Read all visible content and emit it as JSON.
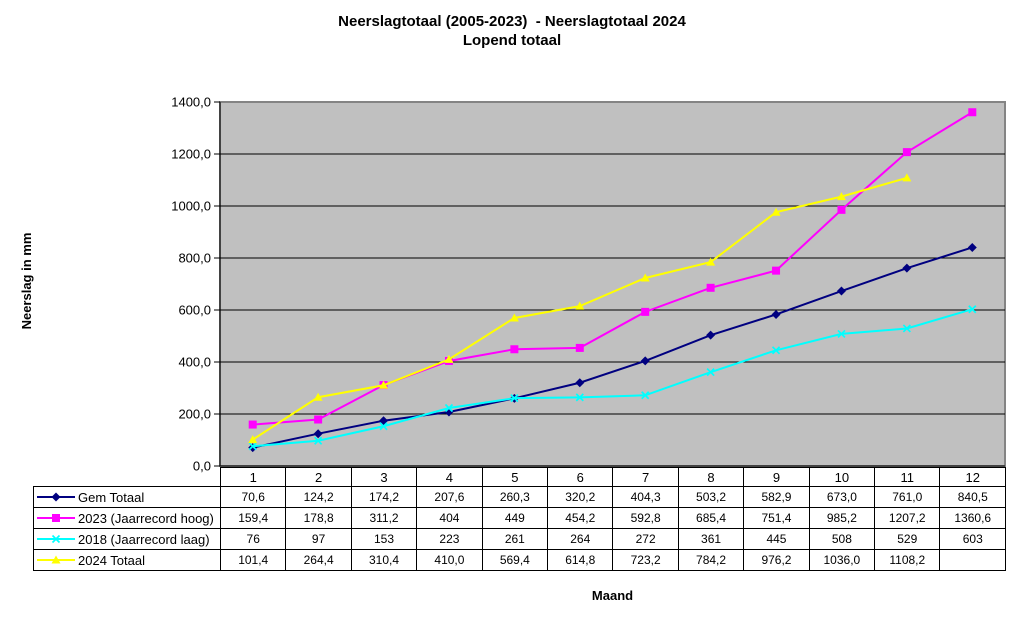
{
  "chart_data": {
    "type": "line",
    "title": "Neerslagtotaal (2005-2023)  - Neerslagtotaal 2024",
    "subtitle": "Lopend totaal",
    "xlabel": "Maand",
    "ylabel": "Neerslag in mm",
    "ylim": [
      0,
      1400
    ],
    "ytick_step": 200,
    "ytick_labels": [
      "0,0",
      "200,0",
      "400,0",
      "600,0",
      "800,0",
      "1000,0",
      "1200,0",
      "1400,0"
    ],
    "categories": [
      "1",
      "2",
      "3",
      "4",
      "5",
      "6",
      "7",
      "8",
      "9",
      "10",
      "11",
      "12"
    ],
    "grid_on": true,
    "legend_position": "table-left",
    "colors": {
      "plot_background": "#c0c0c0",
      "plot_border": "#848484",
      "gridline": "#000000",
      "axis": "#000000",
      "table_border": "#000000"
    },
    "series": [
      {
        "name": "Gem Totaal",
        "color": "#000080",
        "marker": "diamond",
        "values": [
          70.6,
          124.2,
          174.2,
          207.6,
          260.3,
          320.2,
          404.3,
          503.2,
          582.9,
          673.0,
          761.0,
          840.5
        ],
        "display": [
          "70,6",
          "124,2",
          "174,2",
          "207,6",
          "260,3",
          "320,2",
          "404,3",
          "503,2",
          "582,9",
          "673,0",
          "761,0",
          "840,5"
        ]
      },
      {
        "name": "2023 (Jaarrecord hoog)",
        "color": "#ff00ff",
        "marker": "square",
        "values": [
          159.4,
          178.8,
          311.2,
          404,
          449,
          454.2,
          592.8,
          685.4,
          751.4,
          985.2,
          1207.2,
          1360.6
        ],
        "display": [
          "159,4",
          "178,8",
          "311,2",
          "404",
          "449",
          "454,2",
          "592,8",
          "685,4",
          "751,4",
          "985,2",
          "1207,2",
          "1360,6"
        ]
      },
      {
        "name": "2018 (Jaarrecord laag)",
        "color": "#00ffff",
        "marker": "x",
        "values": [
          76,
          97,
          153,
          223,
          261,
          264,
          272,
          361,
          445,
          508,
          529,
          603
        ],
        "display": [
          "76",
          "97",
          "153",
          "223",
          "261",
          "264",
          "272",
          "361",
          "445",
          "508",
          "529",
          "603"
        ]
      },
      {
        "name": "2024 Totaal",
        "color": "#ffff00",
        "marker": "triangle",
        "values": [
          101.4,
          264.4,
          310.4,
          410.0,
          569.4,
          614.8,
          723.2,
          784.2,
          976.2,
          1036.0,
          1108.2,
          null
        ],
        "display": [
          "101,4",
          "264,4",
          "310,4",
          "410,0",
          "569,4",
          "614,8",
          "723,2",
          "784,2",
          "976,2",
          "1036,0",
          "1108,2",
          ""
        ]
      }
    ]
  }
}
